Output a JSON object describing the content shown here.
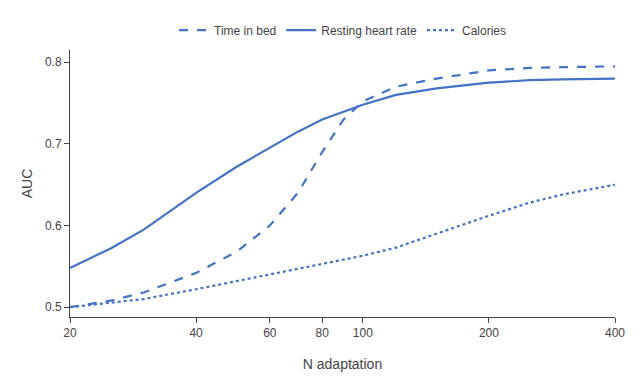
{
  "chart_data": {
    "type": "line",
    "xlabel": "N adaptation",
    "ylabel": "AUC",
    "x": [
      20,
      25,
      30,
      40,
      50,
      60,
      70,
      80,
      90,
      100,
      120,
      150,
      200,
      250,
      300,
      400
    ],
    "series": [
      {
        "name": "Time in bed",
        "color": "#4472C4",
        "line_style": "dashed",
        "values": [
          0.5,
          0.508,
          0.518,
          0.542,
          0.568,
          0.6,
          0.64,
          0.69,
          0.73,
          0.752,
          0.77,
          0.78,
          0.79,
          0.793,
          0.794,
          0.795
        ]
      },
      {
        "name": "Resting heart rate",
        "color": "#4472C4",
        "line_style": "solid",
        "values": [
          0.548,
          0.572,
          0.595,
          0.64,
          0.672,
          0.695,
          0.715,
          0.73,
          0.74,
          0.748,
          0.76,
          0.768,
          0.775,
          0.778,
          0.779,
          0.78
        ]
      },
      {
        "name": "Calories",
        "color": "#4472C4",
        "line_style": "dotted",
        "values": [
          0.5,
          0.505,
          0.51,
          0.522,
          0.532,
          0.54,
          0.547,
          0.553,
          0.558,
          0.563,
          0.573,
          0.59,
          0.612,
          0.628,
          0.638,
          0.65
        ]
      }
    ],
    "log": "x",
    "xlim": [
      20,
      400
    ],
    "xticks": [
      20,
      40,
      60,
      80,
      100,
      200,
      400
    ],
    "ylim": [
      0.488,
      0.815
    ],
    "yticks": [
      0.5,
      0.6,
      0.7,
      0.8
    ],
    "grid": false,
    "legend": "top"
  }
}
